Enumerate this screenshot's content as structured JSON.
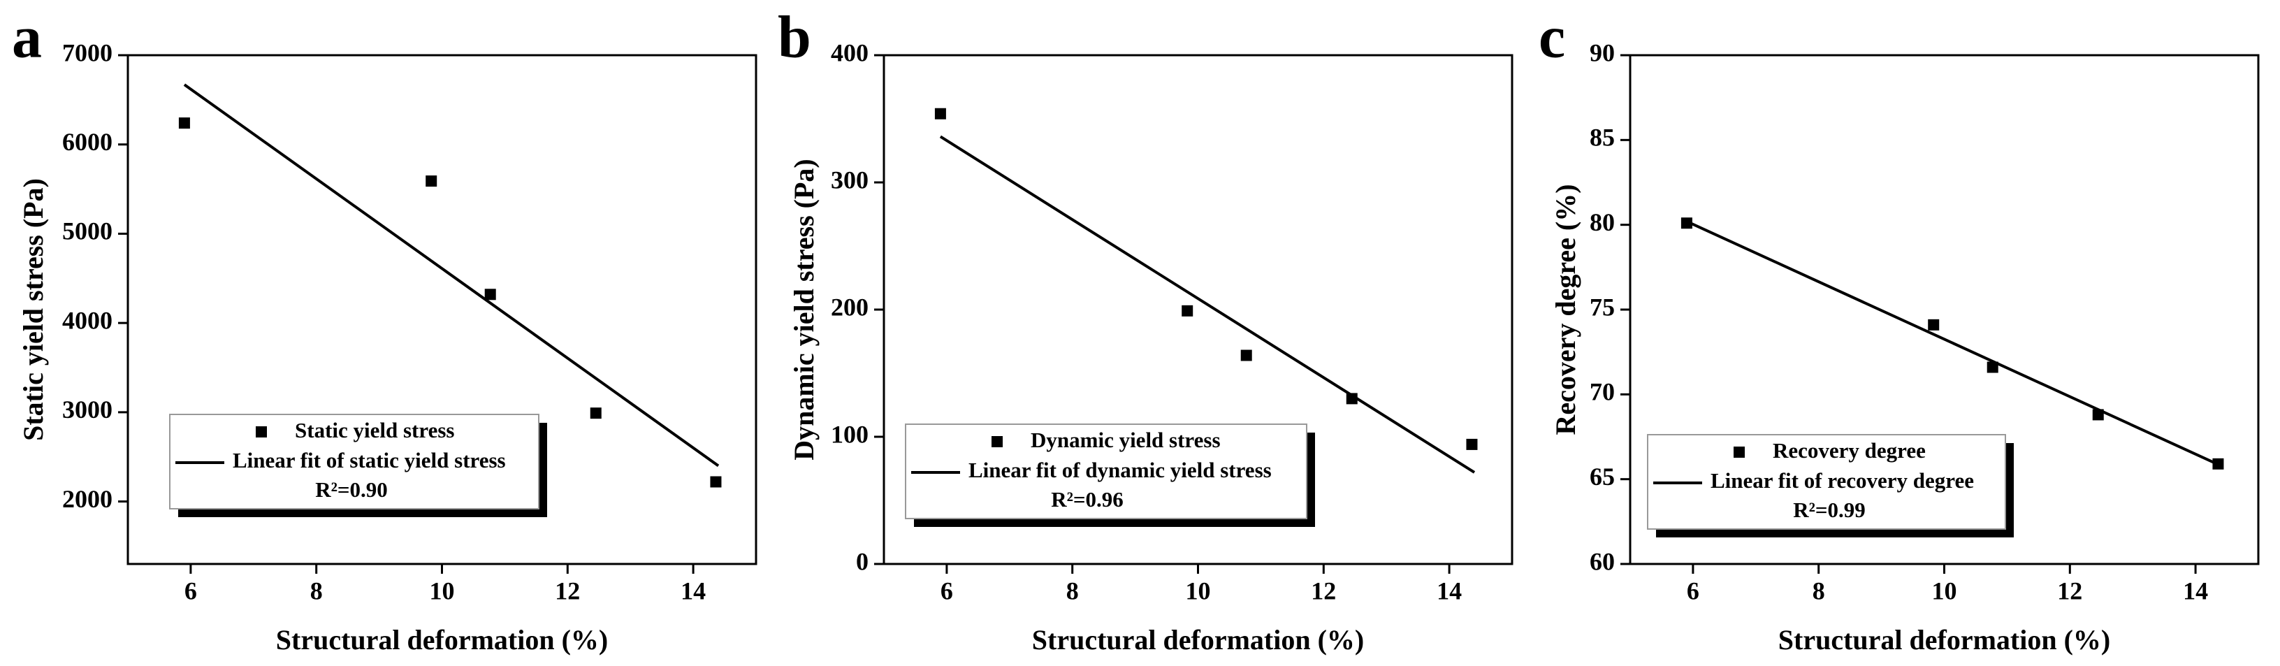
{
  "chart_data": [
    {
      "type": "scatter",
      "panel": "a",
      "xlabel": "Structural deformation (%)",
      "ylabel": "Static yield stress (Pa)",
      "xlim": [
        5,
        15
      ],
      "xticks": [
        6,
        8,
        10,
        12,
        14
      ],
      "ylim": [
        1300,
        7000
      ],
      "yticks": [
        2000,
        3000,
        4000,
        5000,
        6000,
        7000
      ],
      "series": [
        {
          "name": "Static yield stress",
          "color": "#000000",
          "x": [
            5.9,
            9.83,
            10.77,
            12.45,
            14.36
          ],
          "values": [
            6240,
            5590,
            4320,
            2990,
            2220
          ]
        },
        {
          "name": "Linear fit of static yield stress",
          "color": "#000000",
          "x": [
            5.9,
            14.4
          ],
          "values": [
            6670,
            2400
          ]
        }
      ],
      "annotation": "R²=0.90"
    },
    {
      "type": "scatter",
      "panel": "b",
      "xlabel": "Structural deformation (%)",
      "ylabel": "Dynamic yield stress (Pa)",
      "xlim": [
        5,
        15
      ],
      "xticks": [
        6,
        8,
        10,
        12,
        14
      ],
      "ylim": [
        0,
        400
      ],
      "yticks": [
        0,
        100,
        200,
        300,
        400
      ],
      "series": [
        {
          "name": "Dynamic yield stress",
          "color": "#000000",
          "x": [
            5.9,
            9.83,
            10.77,
            12.45,
            14.36
          ],
          "values": [
            354,
            199,
            164,
            130,
            94
          ]
        },
        {
          "name": "Linear fit of dynamic yield stress",
          "color": "#000000",
          "x": [
            5.9,
            14.4
          ],
          "values": [
            336,
            72
          ]
        }
      ],
      "annotation": "R²=0.96"
    },
    {
      "type": "scatter",
      "panel": "c",
      "xlabel": "Structural deformation (%)",
      "ylabel": "Recovery degree (%)",
      "xlim": [
        5,
        15
      ],
      "xticks": [
        6,
        8,
        10,
        12,
        14
      ],
      "ylim": [
        60,
        90
      ],
      "yticks": [
        60,
        65,
        70,
        75,
        80,
        85,
        90
      ],
      "series": [
        {
          "name": "Recovery degree",
          "color": "#000000",
          "x": [
            5.9,
            9.83,
            10.77,
            12.45,
            14.36
          ],
          "values": [
            80.1,
            74.1,
            71.6,
            68.8,
            65.9
          ]
        },
        {
          "name": "Linear fit of recovery degree",
          "color": "#000000",
          "x": [
            5.9,
            14.4
          ],
          "values": [
            80.2,
            65.8
          ]
        }
      ],
      "annotation": "R²=0.99"
    }
  ]
}
